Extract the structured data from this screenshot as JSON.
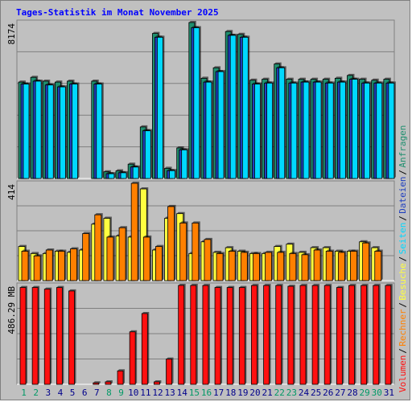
{
  "chart_data": {
    "type": "bar",
    "title": "Tages-Statistik im Monat November 2025",
    "categories": [
      "1",
      "2",
      "3",
      "4",
      "5",
      "6",
      "7",
      "8",
      "9",
      "10",
      "11",
      "12",
      "13",
      "14",
      "15",
      "16",
      "17",
      "18",
      "19",
      "20",
      "21",
      "22",
      "23",
      "24",
      "25",
      "26",
      "27",
      "28",
      "29",
      "30",
      "31"
    ],
    "weekend_days": [
      "1",
      "2",
      "8",
      "9",
      "15",
      "16",
      "22",
      "23",
      "29",
      "30"
    ],
    "panels": [
      {
        "id": "requests",
        "ymax_label": "8174",
        "ymax": 8174,
        "series": [
          {
            "name": "Anfragen",
            "color": "#1f8f6f",
            "values": [
              5050,
              5300,
              5100,
              5050,
              5100,
              0,
              5100,
              350,
              400,
              750,
              2700,
              7600,
              530,
              1600,
              8174,
              5250,
              5800,
              7700,
              7550,
              5150,
              5200,
              6000,
              5200,
              5200,
              5200,
              5200,
              5250,
              5400,
              5200,
              5150,
              5200
            ]
          },
          {
            "name": "Dateien",
            "color": "#1f3fbf",
            "values": [
              4950,
              5100,
              4900,
              4800,
              4950,
              0,
              4950,
              250,
              300,
              600,
              2500,
              7400,
              410,
              1500,
              7900,
              5050,
              5600,
              7500,
              7400,
              4950,
              5000,
              5800,
              5000,
              5050,
              5050,
              5000,
              5050,
              5200,
              5000,
              5000,
              5000
            ]
          },
          {
            "name": "Seiten",
            "color": "#00d8ff",
            "values": [
              4950,
              5100,
              4900,
              4800,
              4950,
              0,
              4950,
              250,
              300,
              600,
              2500,
              7400,
              410,
              1500,
              7900,
              5050,
              5600,
              7500,
              7400,
              4950,
              5000,
              5800,
              5000,
              5050,
              5050,
              5000,
              5050,
              5200,
              5000,
              5000,
              5000
            ]
          }
        ]
      },
      {
        "id": "visits",
        "ymax_label": "414",
        "ymax": 414,
        "series": [
          {
            "name": "Besuche",
            "color": "#ffff40",
            "values": [
              145,
              115,
              115,
              125,
              120,
              130,
              240,
              265,
              190,
              185,
              390,
              130,
              265,
              285,
              115,
              165,
              120,
              140,
              125,
              115,
              115,
              145,
              155,
              120,
              140,
              140,
              125,
              125,
              165,
              140,
              0
            ]
          },
          {
            "name": "Rechner",
            "color": "#ff8000",
            "values": [
              125,
              105,
              130,
              125,
              135,
              200,
              280,
              185,
              225,
              414,
              185,
              145,
              315,
              245,
              245,
              175,
              115,
              125,
              120,
              115,
              120,
              120,
              115,
              110,
              130,
              125,
              120,
              125,
              160,
              125,
              0
            ]
          }
        ]
      },
      {
        "id": "volume",
        "ymax_label": "486.29 MB",
        "ymax": 486.29,
        "series": [
          {
            "name": "Volumen",
            "color": "#ff1010",
            "values": [
              476,
              476,
              468,
              476,
              459,
              0,
              7,
              12,
              66,
              258,
              348,
              12,
              124,
              486.29,
              486.29,
              486,
              476,
              476,
              476,
              486,
              486,
              486,
              482,
              486,
              486,
              486,
              476,
              486,
              486,
              486,
              486
            ]
          }
        ]
      }
    ],
    "right_legend": [
      {
        "name": "Anfragen",
        "color": "#1f8f6f"
      },
      {
        "name": "Dateien",
        "color": "#1f3fbf"
      },
      {
        "name": "Seiten",
        "color": "#00d8ff"
      },
      {
        "name": "Besuche",
        "color": "#ffff40"
      },
      {
        "name": "Rechner",
        "color": "#ff8000"
      },
      {
        "name": "Volumen",
        "color": "#ff1010"
      }
    ],
    "weekday_label_color": "#00008b",
    "weekend_label_color": "#009966"
  }
}
